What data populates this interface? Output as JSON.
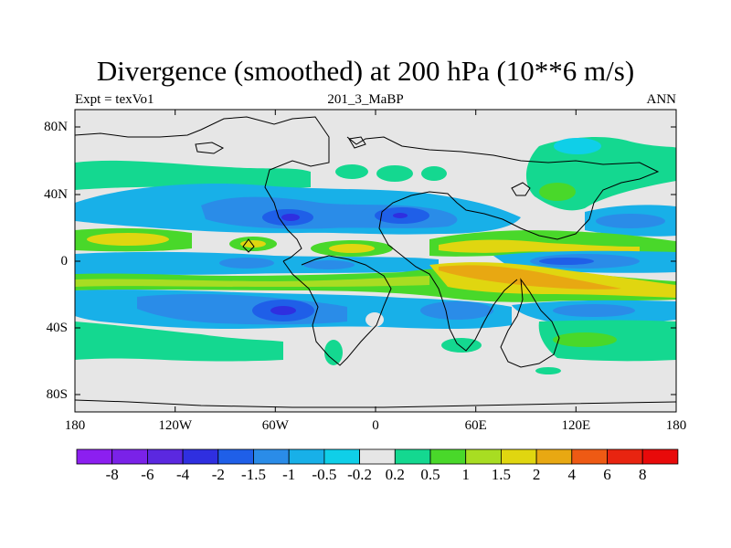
{
  "title": "Divergence (smoothed) at 200 hPa (10**6 m/s)",
  "subtitle_left": "Expt = texVo1",
  "subtitle_center": "201_3_MaBP",
  "subtitle_right": "ANN",
  "latitude_labels": [
    "80N",
    "40N",
    "0",
    "40S",
    "80S"
  ],
  "longitude_labels": [
    "180",
    "120W",
    "60W",
    "0",
    "60E",
    "120E",
    "180"
  ],
  "colorbar_labels": [
    "-8",
    "-6",
    "-4",
    "-2",
    "-1.5",
    "-1",
    "-0.5",
    "-0.2",
    "0.2",
    "0.5",
    "1",
    "1.5",
    "2",
    "4",
    "6",
    "8"
  ],
  "colors": {
    "background": "#ffffff",
    "neutral": "#e6e6e6",
    "coast": "#000000",
    "levels": [
      "#8c1ff0",
      "#7a22e8",
      "#5b28e0",
      "#2f2fe0",
      "#1f5fe8",
      "#2a8ce8",
      "#18b0e8",
      "#0fcfe8",
      "#e6e6e6",
      "#14d890",
      "#49d82a",
      "#a8dd22",
      "#e0d610",
      "#e8a812",
      "#ee5a14",
      "#e82410",
      "#e80a0a"
    ]
  }
}
